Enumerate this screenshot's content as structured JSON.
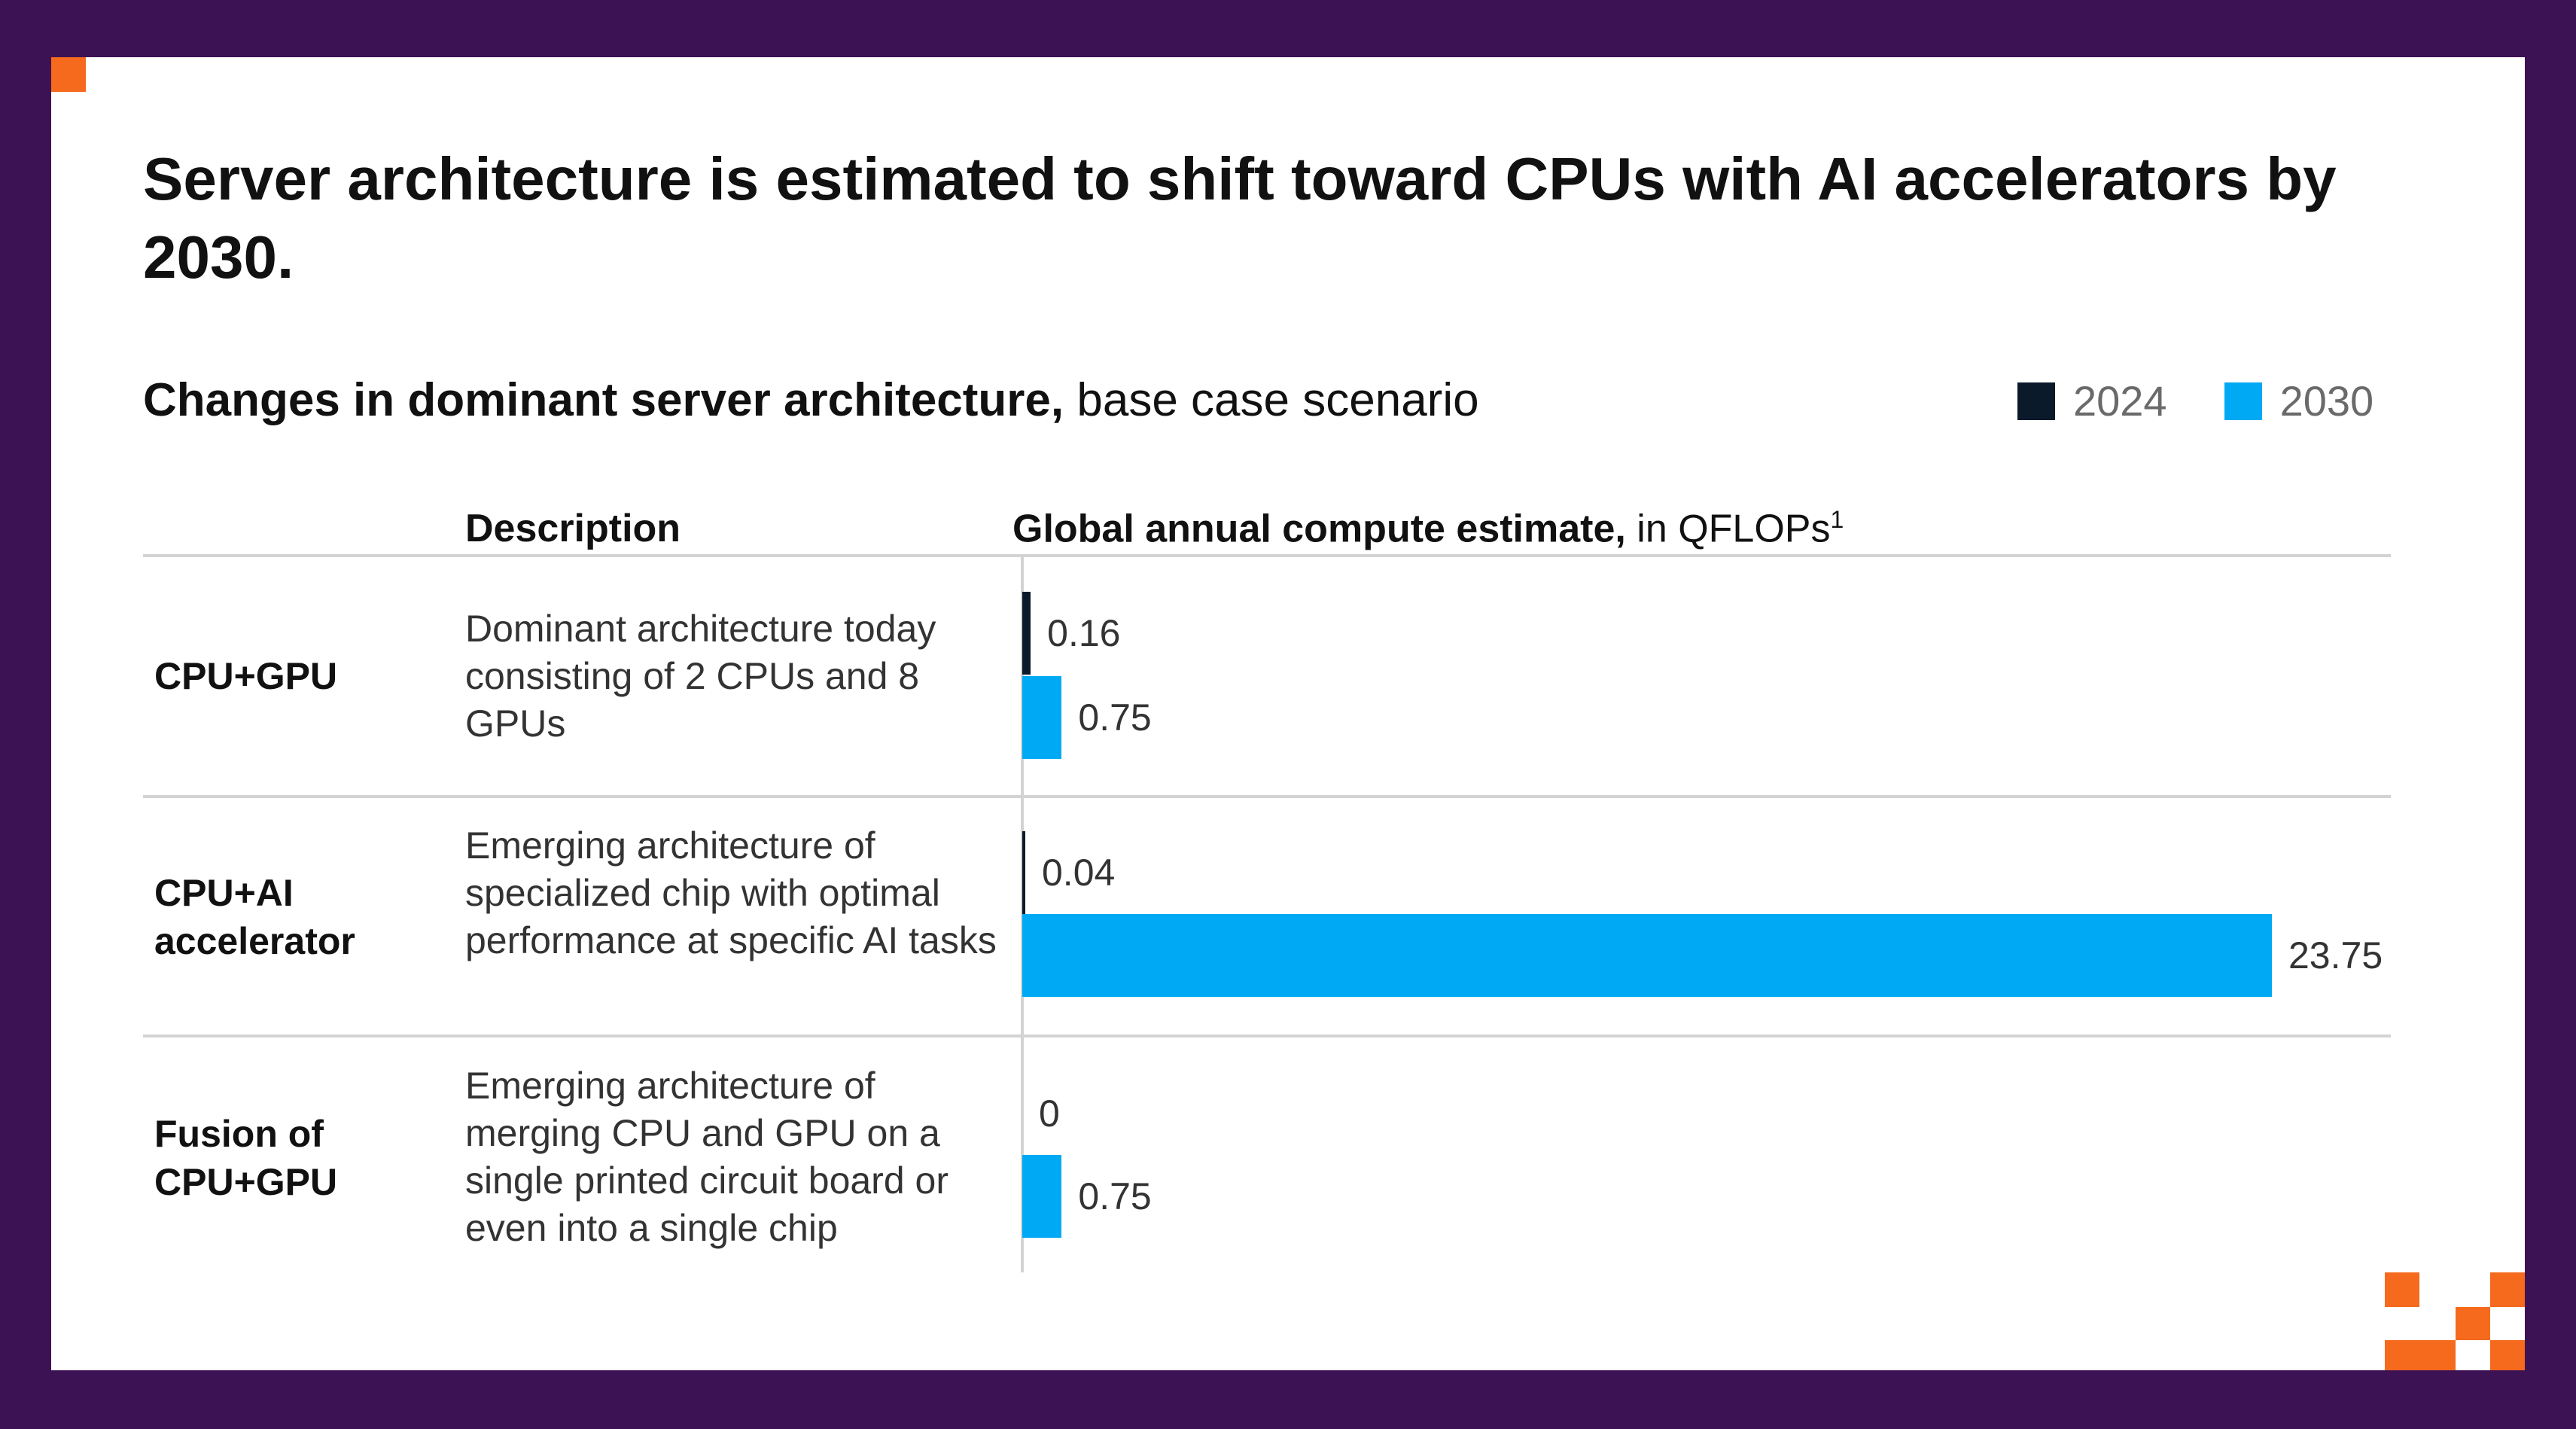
{
  "headline": "Server architecture is estimated to shift toward CPUs with AI accelerators by 2030.",
  "subtitle_bold": "Changes in dominant server architecture,",
  "subtitle_rest": "base case scenario",
  "col_description": "Description",
  "col_estimate_bold": "Global annual compute estimate,",
  "col_estimate_rest": "in QFLOPs",
  "col_estimate_sup": "1",
  "colors": {
    "2024": "#0b1a2a",
    "2030": "#00a9f4",
    "accent": "#f56a1c",
    "frame": "#3d1255"
  },
  "chart_data": {
    "type": "bar",
    "orientation": "horizontal",
    "categories": [
      "CPU+GPU",
      "CPU+AI accelerator",
      "Fusion of CPU+GPU"
    ],
    "descriptions": [
      "Dominant architecture today consisting of 2 CPUs and 8 GPUs",
      "Emerging architecture of specialized chip with optimal performance at specific AI tasks",
      "Emerging architecture of merging CPU and GPU on a single printed circuit board or even into a single chip"
    ],
    "series": [
      {
        "name": "2024",
        "values": [
          0.16,
          0.04,
          0
        ],
        "labels": [
          "0.16",
          "0.04",
          "0"
        ]
      },
      {
        "name": "2030",
        "values": [
          0.75,
          23.75,
          0.75
        ],
        "labels": [
          "0.75",
          "23.75",
          "0.75"
        ]
      }
    ],
    "xlim": [
      0,
      23.75
    ],
    "legend": "top-right",
    "grid": false
  }
}
